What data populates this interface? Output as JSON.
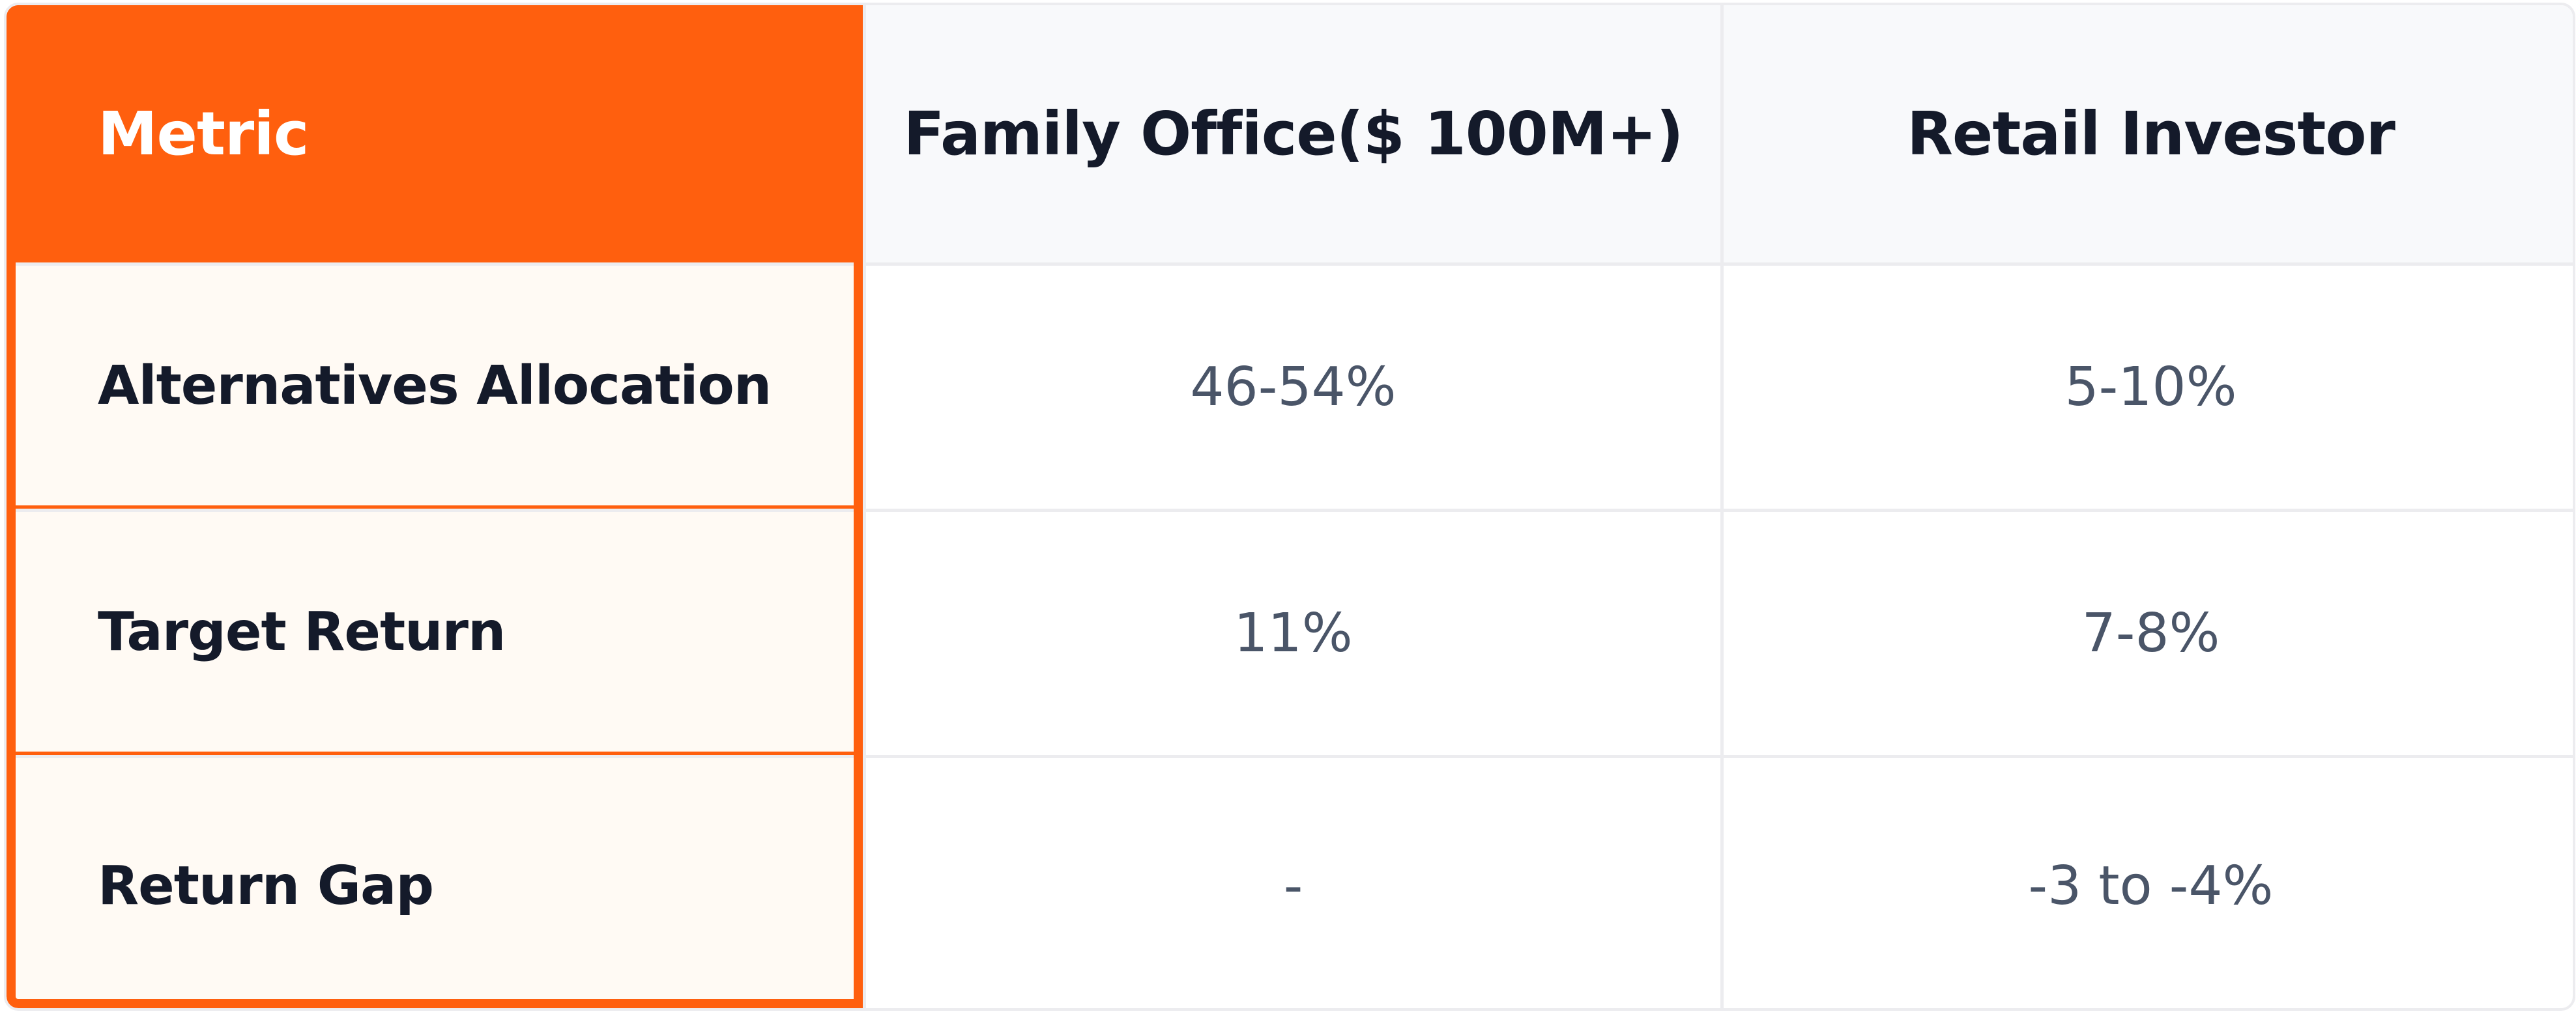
{
  "table": {
    "headers": [
      "Metric",
      "Family Office($ 100M+)",
      "Retail Investor"
    ],
    "rows": [
      {
        "metric": "Alternatives Allocation",
        "family_office": "46-54%",
        "retail": "5-10%"
      },
      {
        "metric": "Target Return",
        "family_office": "11%",
        "retail": "7-8%"
      },
      {
        "metric": "Return Gap",
        "family_office": "-",
        "retail": "-3 to -4%"
      }
    ]
  },
  "colors": {
    "accent": "#ff5f0e",
    "header_bg": "#f8f9fb",
    "metric_bg": "#fffaf4",
    "text_dark": "#141a2a",
    "text_muted": "#4a5568",
    "border": "#ececef"
  }
}
